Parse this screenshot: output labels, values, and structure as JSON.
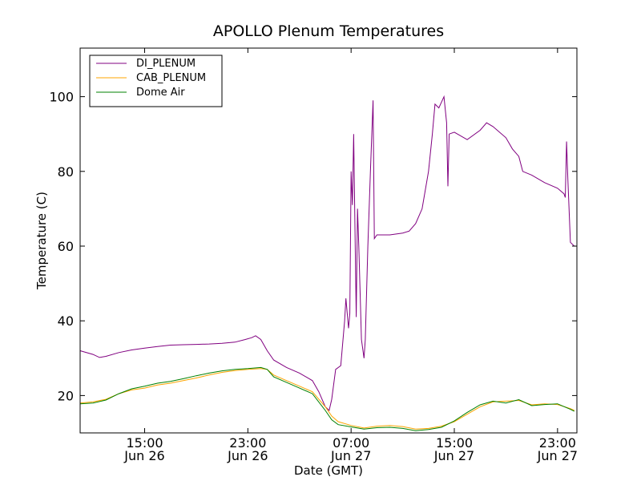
{
  "chart_data": {
    "type": "line",
    "title": "APOLLO Plenum Temperatures",
    "xlabel": "Date (GMT)",
    "ylabel": "Temperature (C)",
    "x_unit": "hours since Jun 26 10:00 GMT",
    "xlim": [
      0,
      38.5
    ],
    "ylim": [
      10,
      113
    ],
    "y_ticks": [
      20,
      40,
      60,
      80,
      100
    ],
    "x_ticks": [
      {
        "x": 5,
        "time": "15:00",
        "date": "Jun 26"
      },
      {
        "x": 13,
        "time": "23:00",
        "date": "Jun 26"
      },
      {
        "x": 21,
        "time": "07:00",
        "date": "Jun 27"
      },
      {
        "x": 29,
        "time": "15:00",
        "date": "Jun 27"
      },
      {
        "x": 37,
        "time": "23:00",
        "date": "Jun 27"
      }
    ],
    "grid": false,
    "legend_position": "top-left",
    "series": [
      {
        "name": "DI_PLENUM",
        "color": "#800080",
        "points": [
          [
            0,
            32
          ],
          [
            1,
            31
          ],
          [
            1.5,
            30.2
          ],
          [
            2,
            30.5
          ],
          [
            3,
            31.5
          ],
          [
            4,
            32.2
          ],
          [
            5,
            32.7
          ],
          [
            6,
            33.1
          ],
          [
            7,
            33.5
          ],
          [
            8,
            33.6
          ],
          [
            9,
            33.7
          ],
          [
            10,
            33.8
          ],
          [
            11,
            34
          ],
          [
            12,
            34.3
          ],
          [
            12.8,
            35
          ],
          [
            13.3,
            35.5
          ],
          [
            13.6,
            36
          ],
          [
            14,
            35
          ],
          [
            14.5,
            32
          ],
          [
            15,
            29.5
          ],
          [
            16,
            27.5
          ],
          [
            17,
            26
          ],
          [
            18,
            24
          ],
          [
            18.5,
            21
          ],
          [
            19,
            17
          ],
          [
            19.3,
            16
          ],
          [
            19.5,
            19
          ],
          [
            19.8,
            27
          ],
          [
            20.2,
            28
          ],
          [
            20.5,
            40
          ],
          [
            20.6,
            46
          ],
          [
            20.8,
            38
          ],
          [
            20.9,
            42
          ],
          [
            21,
            80
          ],
          [
            21.1,
            71
          ],
          [
            21.2,
            90
          ],
          [
            21.3,
            65
          ],
          [
            21.4,
            41
          ],
          [
            21.5,
            70
          ],
          [
            21.6,
            60
          ],
          [
            21.8,
            35
          ],
          [
            22,
            30
          ],
          [
            22.1,
            35
          ],
          [
            22.3,
            60
          ],
          [
            22.5,
            80
          ],
          [
            22.7,
            99
          ],
          [
            22.8,
            62
          ],
          [
            23,
            63
          ],
          [
            24,
            63
          ],
          [
            25,
            63.5
          ],
          [
            25.5,
            64
          ],
          [
            26,
            66
          ],
          [
            26.5,
            70
          ],
          [
            27,
            80
          ],
          [
            27.3,
            90
          ],
          [
            27.5,
            98
          ],
          [
            27.8,
            97
          ],
          [
            28.2,
            100
          ],
          [
            28.4,
            93
          ],
          [
            28.5,
            76
          ],
          [
            28.6,
            90
          ],
          [
            29,
            90.5
          ],
          [
            30,
            88.5
          ],
          [
            31,
            91
          ],
          [
            31.5,
            93
          ],
          [
            32,
            92
          ],
          [
            33,
            89
          ],
          [
            33.5,
            86
          ],
          [
            34,
            84
          ],
          [
            34.3,
            80
          ],
          [
            35,
            79
          ],
          [
            36,
            77
          ],
          [
            37,
            75.5
          ],
          [
            37.5,
            74
          ],
          [
            37.6,
            73
          ],
          [
            37.7,
            88
          ],
          [
            37.8,
            78
          ],
          [
            38,
            61
          ],
          [
            38.3,
            60
          ]
        ]
      },
      {
        "name": "CAB_PLENUM",
        "color": "#FFA500",
        "points": [
          [
            0,
            18
          ],
          [
            1,
            18.3
          ],
          [
            2,
            19
          ],
          [
            3,
            20.5
          ],
          [
            4,
            21.5
          ],
          [
            5,
            22
          ],
          [
            6,
            22.8
          ],
          [
            7,
            23.3
          ],
          [
            8,
            24
          ],
          [
            9,
            24.7
          ],
          [
            10,
            25.5
          ],
          [
            11,
            26.2
          ],
          [
            12,
            26.7
          ],
          [
            13,
            27
          ],
          [
            14,
            27.2
          ],
          [
            14.5,
            27
          ],
          [
            15,
            25.5
          ],
          [
            16,
            24
          ],
          [
            17,
            22.5
          ],
          [
            18,
            21
          ],
          [
            19,
            17
          ],
          [
            19.5,
            14.5
          ],
          [
            20,
            13
          ],
          [
            21,
            12
          ],
          [
            22,
            11.3
          ],
          [
            23,
            11.8
          ],
          [
            24,
            12
          ],
          [
            25,
            11.7
          ],
          [
            26,
            11
          ],
          [
            27,
            11.2
          ],
          [
            28,
            11.8
          ],
          [
            29,
            13
          ],
          [
            30,
            15
          ],
          [
            31,
            17
          ],
          [
            32,
            18.3
          ],
          [
            33,
            18.5
          ],
          [
            34,
            18.7
          ],
          [
            35,
            17.5
          ],
          [
            36,
            17.8
          ],
          [
            37,
            17.6
          ],
          [
            38,
            16.5
          ],
          [
            38.3,
            16
          ]
        ]
      },
      {
        "name": "Dome Air",
        "color": "#008000",
        "points": [
          [
            0,
            17.8
          ],
          [
            1,
            18
          ],
          [
            2,
            18.8
          ],
          [
            3,
            20.5
          ],
          [
            4,
            21.8
          ],
          [
            5,
            22.5
          ],
          [
            6,
            23.3
          ],
          [
            7,
            23.8
          ],
          [
            8,
            24.5
          ],
          [
            9,
            25.3
          ],
          [
            10,
            26
          ],
          [
            11,
            26.6
          ],
          [
            12,
            27
          ],
          [
            13,
            27.2
          ],
          [
            14,
            27.5
          ],
          [
            14.5,
            27
          ],
          [
            15,
            25
          ],
          [
            16,
            23.5
          ],
          [
            17,
            22
          ],
          [
            18,
            20.5
          ],
          [
            19,
            16
          ],
          [
            19.5,
            13.5
          ],
          [
            20,
            12.2
          ],
          [
            21,
            11.6
          ],
          [
            22,
            11
          ],
          [
            23,
            11.4
          ],
          [
            24,
            11.5
          ],
          [
            25,
            11.2
          ],
          [
            26,
            10.6
          ],
          [
            27,
            10.9
          ],
          [
            28,
            11.5
          ],
          [
            29,
            13.2
          ],
          [
            30,
            15.5
          ],
          [
            31,
            17.5
          ],
          [
            32,
            18.5
          ],
          [
            33,
            18
          ],
          [
            34,
            18.9
          ],
          [
            35,
            17.3
          ],
          [
            36,
            17.6
          ],
          [
            37,
            17.8
          ],
          [
            38,
            16.3
          ],
          [
            38.3,
            15.8
          ]
        ]
      }
    ]
  }
}
